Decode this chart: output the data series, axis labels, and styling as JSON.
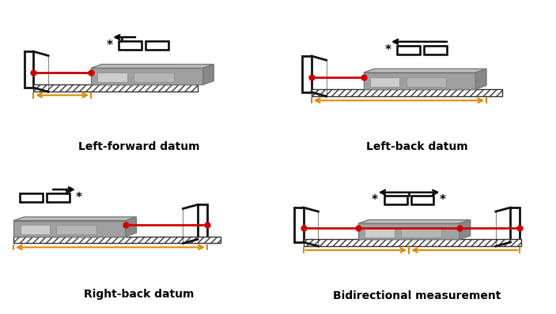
{
  "labels": [
    "Left-forward datum",
    "Left-back datum",
    "Right-back datum",
    "Bidirectional measurement"
  ],
  "label_fontsize": 10,
  "bg_color": "#ffffff",
  "laser_color": "#cc0000",
  "wall_color": "#111111",
  "measure_color": "#dd8800",
  "device_body": "#a0a0a0",
  "device_top": "#c0c0c0",
  "device_side": "#888888",
  "hatch_color": "#333333"
}
